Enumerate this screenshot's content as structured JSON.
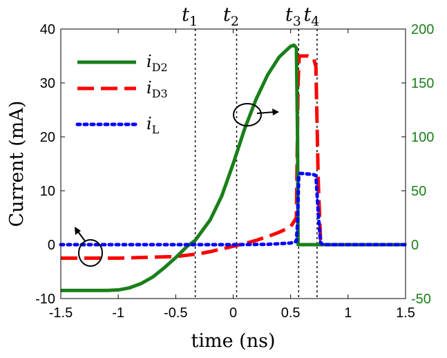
{
  "chart_data": {
    "type": "line",
    "xlabel": "time (ns)",
    "ylabel": "Current (mA)",
    "xlim": [
      -1.5,
      1.5
    ],
    "ylim_left": [
      -10,
      40
    ],
    "ylim_right": [
      -50,
      200
    ],
    "x_ticks": [
      "-1.5",
      "-1",
      "-0.5",
      "0",
      "0.5",
      "1",
      "1.5"
    ],
    "y_ticks_left": [
      "-10",
      "0",
      "10",
      "20",
      "30",
      "40"
    ],
    "y_ticks_right": [
      "-50",
      "0",
      "50",
      "100",
      "150",
      "200"
    ],
    "right_axis_color": "#1a7f1a",
    "grid": false,
    "legend_position": "top-left",
    "vlines": [
      {
        "x": -0.33,
        "label": "t",
        "sub": "1"
      },
      {
        "x": 0.03,
        "label": "t",
        "sub": "2"
      },
      {
        "x": 0.57,
        "label": "t",
        "sub": "3"
      },
      {
        "x": 0.73,
        "label": "t",
        "sub": "4"
      }
    ],
    "series": [
      {
        "name": "i",
        "name_sub": "D2",
        "axis": "left",
        "color": "#1a7f1a",
        "style": "solid",
        "x": [
          -1.5,
          -1.1,
          -1.0,
          -0.9,
          -0.8,
          -0.7,
          -0.6,
          -0.5,
          -0.4,
          -0.33,
          -0.2,
          -0.1,
          0.0,
          0.1,
          0.2,
          0.3,
          0.4,
          0.5,
          0.53,
          0.55,
          0.56,
          0.565,
          0.6,
          0.7,
          0.75,
          1.0,
          1.5
        ],
        "y": [
          -8.5,
          -8.5,
          -8.4,
          -8.0,
          -7.2,
          -6.0,
          -4.3,
          -2.4,
          -0.3,
          0.8,
          4.6,
          9.0,
          15.0,
          21.5,
          27.0,
          31.5,
          34.8,
          36.8,
          37.0,
          36.5,
          20.0,
          0.0,
          0.0,
          0.0,
          0.0,
          0.0,
          0.0
        ]
      },
      {
        "name": "i",
        "name_sub": "D3",
        "axis": "right",
        "color": "#ff0000",
        "style": "dashed",
        "x": [
          -1.5,
          -1.0,
          -0.5,
          -0.3,
          -0.2,
          -0.1,
          0.0,
          0.1,
          0.2,
          0.3,
          0.4,
          0.5,
          0.55,
          0.565,
          0.575,
          0.6,
          0.65,
          0.7,
          0.72,
          0.74,
          0.76,
          0.78,
          1.0,
          1.5
        ],
        "y": [
          -12.5,
          -12.5,
          -11.0,
          -8.5,
          -6.5,
          -4.0,
          -1.5,
          1.0,
          4.0,
          7.5,
          11.5,
          16.5,
          25.0,
          150.0,
          175.0,
          175.0,
          175.0,
          173.0,
          165.0,
          60.0,
          5.0,
          0.0,
          0.0,
          0.0
        ]
      },
      {
        "name": "i",
        "name_sub": "L",
        "axis": "right",
        "color": "#0000ff",
        "style": "dotted",
        "x": [
          -1.5,
          -1.0,
          -0.5,
          -0.3,
          0.0,
          0.3,
          0.5,
          0.55,
          0.56,
          0.57,
          0.58,
          0.6,
          0.7,
          0.72,
          0.74,
          0.76,
          0.78,
          1.0,
          1.5
        ],
        "y": [
          0.0,
          0.0,
          0.0,
          0.0,
          0.0,
          0.3,
          1.5,
          3.0,
          20.0,
          62.0,
          66.0,
          66.0,
          65.0,
          64.0,
          30.0,
          2.0,
          0.0,
          0.0,
          0.0
        ]
      }
    ]
  }
}
